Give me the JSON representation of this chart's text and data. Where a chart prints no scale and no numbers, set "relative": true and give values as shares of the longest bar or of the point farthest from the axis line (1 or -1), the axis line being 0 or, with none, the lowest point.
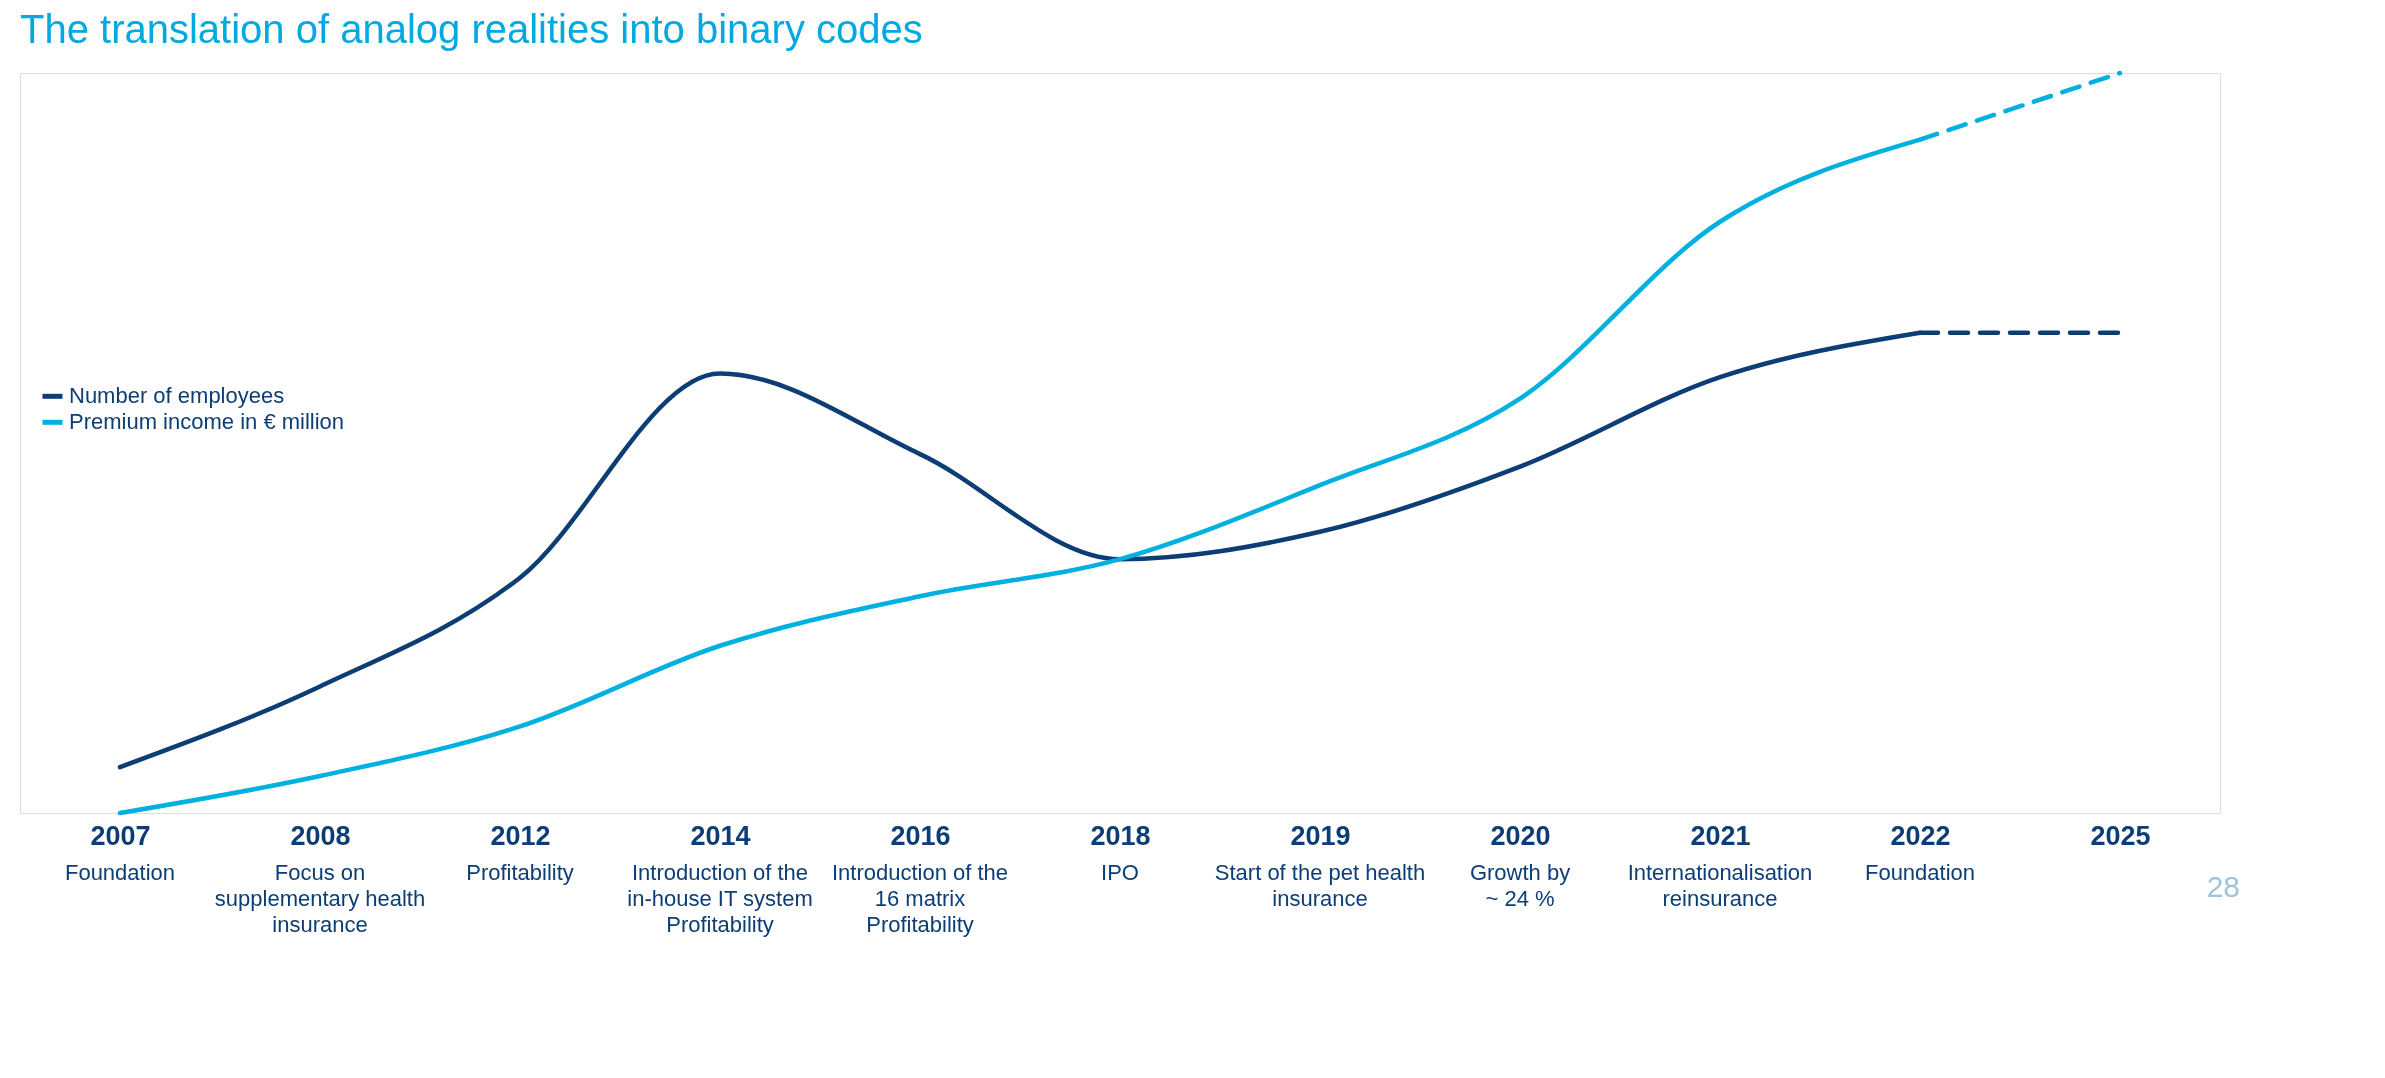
{
  "chart_data": {
    "type": "line",
    "title": "The translation of analog realities into binary codes",
    "relative": true,
    "categories": [
      "2007",
      "2008",
      "2012",
      "2014",
      "2016",
      "2018",
      "2019",
      "2020",
      "2021",
      "2022",
      "2025"
    ],
    "series": [
      {
        "name": "Number of employees",
        "color": "#0d3d75",
        "values": [
          0.062,
          0.171,
          0.318,
          0.594,
          0.485,
          0.343,
          0.38,
          0.468,
          0.589,
          0.649,
          null
        ]
      },
      {
        "name": "Premium income in € million",
        "color": "#00b0e0",
        "values": [
          0.0,
          0.05,
          0.117,
          0.226,
          0.293,
          0.343,
          0.443,
          0.56,
          0.799,
          0.91,
          null
        ]
      },
      {
        "color": "#0d3d75",
        "line_style": "dashed",
        "values": [
          null,
          null,
          null,
          null,
          null,
          null,
          null,
          null,
          null,
          0.649,
          0.649
        ]
      },
      {
        "color": "#00b0e0",
        "line_style": "dashed",
        "values": [
          null,
          null,
          null,
          null,
          null,
          null,
          null,
          null,
          null,
          0.91,
          1.0
        ]
      }
    ],
    "annotations": [
      "Foundation",
      "Focus on\nsupplementary health\ninsurance",
      "Profitability",
      "Introduction of the\nin-house IT system\nProfitability",
      "Introduction of the\n16 matrix\nProfitability",
      "IPO",
      "Start of the pet health\ninsurance",
      "Growth by\n~ 24 %",
      "Internationalisation\nreinsurance",
      "Foundation",
      "28"
    ],
    "legend": "left",
    "grid": false,
    "line_style": "solid",
    "marker": "none"
  }
}
